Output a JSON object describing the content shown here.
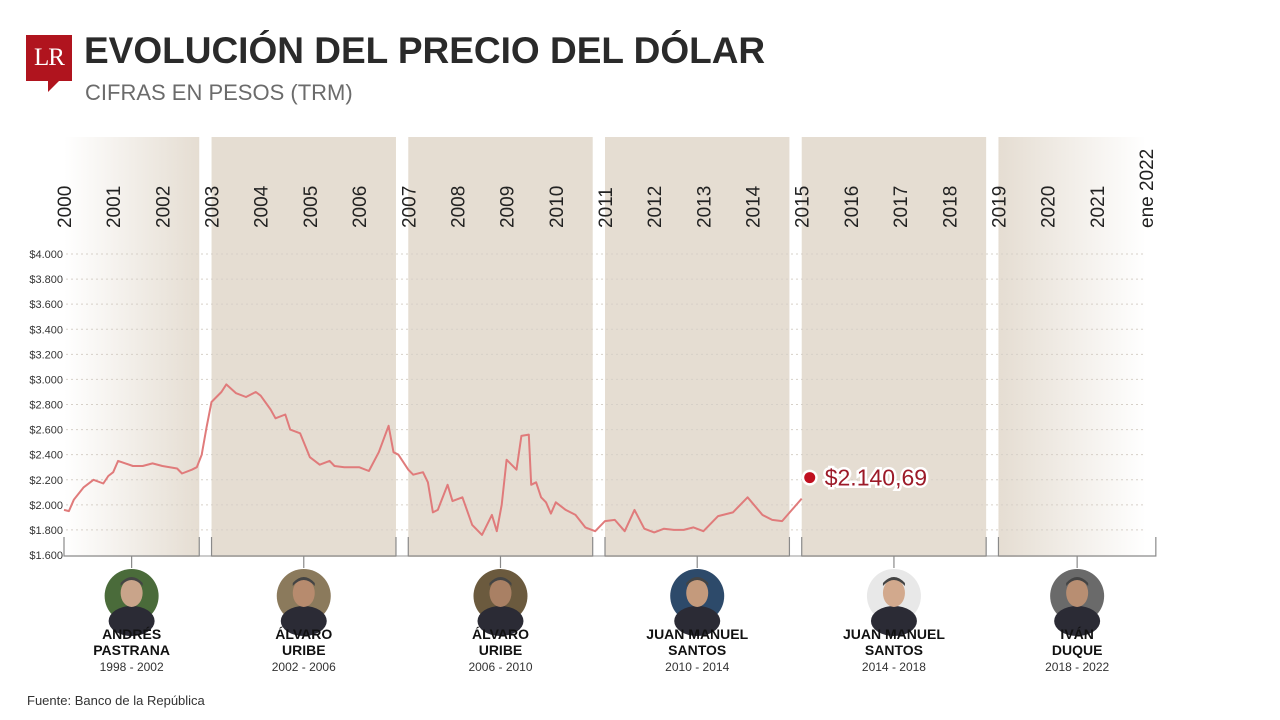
{
  "header": {
    "title": "EVOLUCIÓN DEL PRECIO DEL DÓLAR",
    "subtitle": "CIFRAS EN PESOS (TRM)",
    "logo_text": "LR"
  },
  "footer": {
    "source": "Fuente: Banco de la República"
  },
  "colors": {
    "brand": "#b0141e",
    "line": "#e07b7b",
    "band": "#e5ddd2",
    "marker": "#c01020"
  },
  "chart_data": {
    "type": "line",
    "title": "EVOLUCIÓN DEL PRECIO DEL DÓLAR",
    "subtitle": "CIFRAS EN PESOS (TRM)",
    "ylim": [
      1600,
      4000
    ],
    "y_ticks": [
      "$4.000",
      "$3.800",
      "$3.600",
      "$3.400",
      "$3.200",
      "$3.000",
      "$2.800",
      "$2.600",
      "$2.400",
      "$2.200",
      "$2.000",
      "$1.800",
      "$1.600"
    ],
    "x_labels": [
      "2000",
      "2001",
      "2002",
      "2003",
      "2004",
      "2005",
      "2006",
      "2007",
      "2008",
      "2009",
      "2010",
      "2011",
      "2012",
      "2013",
      "2014",
      "2015",
      "2016",
      "2017",
      "2018",
      "2019",
      "2020",
      "2021",
      "ene 2022"
    ],
    "grid": true,
    "series": [
      {
        "x": [
          2000.0,
          2000.1,
          2000.2,
          2000.4,
          2000.6,
          2000.8,
          2000.9,
          2001.0,
          2001.1,
          2001.4,
          2001.6,
          2001.8,
          2002.0,
          2002.3,
          2002.4,
          2002.6,
          2002.7,
          2002.8,
          2002.9,
          2003.0,
          2003.2,
          2003.3,
          2003.5,
          2003.7,
          2003.9,
          2004.0,
          2004.2,
          2004.3,
          2004.5,
          2004.6,
          2004.8,
          2005.0,
          2005.2,
          2005.4,
          2005.5,
          2005.7,
          2006.0,
          2006.2,
          2006.4,
          2006.6,
          2006.7,
          2006.8,
          2007.0,
          2007.1,
          2007.3,
          2007.4,
          2007.5,
          2007.6,
          2007.8,
          2007.9,
          2008.1,
          2008.3,
          2008.5,
          2008.7,
          2008.8,
          2008.9,
          2009.0,
          2009.2,
          2009.3,
          2009.45,
          2009.5,
          2009.6,
          2009.7,
          2009.8,
          2009.9,
          2010.0,
          2010.2,
          2010.4,
          2010.6,
          2010.8,
          2011.0,
          2011.2,
          2011.4,
          2011.6,
          2011.8,
          2012.0,
          2012.2,
          2012.4,
          2012.6,
          2012.8,
          2013.0,
          2013.3,
          2013.6,
          2013.9,
          2014.2,
          2014.4,
          2014.6,
          2014.8,
          2015.0
        ],
        "y": [
          1960,
          1950,
          2040,
          2140,
          2200,
          2170,
          2230,
          2260,
          2350,
          2310,
          2310,
          2330,
          2310,
          2290,
          2250,
          2280,
          2300,
          2400,
          2620,
          2820,
          2900,
          2960,
          2890,
          2860,
          2900,
          2870,
          2760,
          2690,
          2720,
          2600,
          2570,
          2380,
          2320,
          2350,
          2310,
          2300,
          2300,
          2270,
          2420,
          2630,
          2420,
          2400,
          2280,
          2240,
          2260,
          2180,
          1940,
          1960,
          2160,
          2030,
          2060,
          1840,
          1760,
          1920,
          1790,
          2000,
          2360,
          2280,
          2550,
          2560,
          2160,
          2180,
          2060,
          2020,
          1930,
          2020,
          1960,
          1920,
          1820,
          1790,
          1870,
          1880,
          1790,
          1960,
          1810,
          1780,
          1810,
          1800,
          1800,
          1820,
          1790,
          1910,
          1940,
          2060,
          1920,
          1880,
          1870,
          1960,
          2050
        ]
      }
    ],
    "annotation": "$2.140,69",
    "presidents": [
      {
        "name": "ANDRÉS PASTRANA",
        "line1": "ANDRÉS",
        "line2": "PASTRANA",
        "years": "1998 - 2002"
      },
      {
        "name": "ÁLVARO URIBE",
        "line1": "ÁLVARO",
        "line2": "URIBE",
        "years": "2002 - 2006"
      },
      {
        "name": "ÁLVARO URIBE",
        "line1": "ÁLVARO",
        "line2": "URIBE",
        "years": "2006 - 2010"
      },
      {
        "name": "JUAN MANUEL SANTOS",
        "line1": "JUAN MANUEL",
        "line2": "SANTOS",
        "years": "2010 - 2014"
      },
      {
        "name": "JUAN MANUEL SANTOS",
        "line1": "JUAN MANUEL",
        "line2": "SANTOS",
        "years": "2014 - 2018"
      },
      {
        "name": "IVÁN DUQUE",
        "line1": "IVÁN",
        "line2": "DUQUE",
        "years": "2018 - 2022"
      }
    ]
  }
}
